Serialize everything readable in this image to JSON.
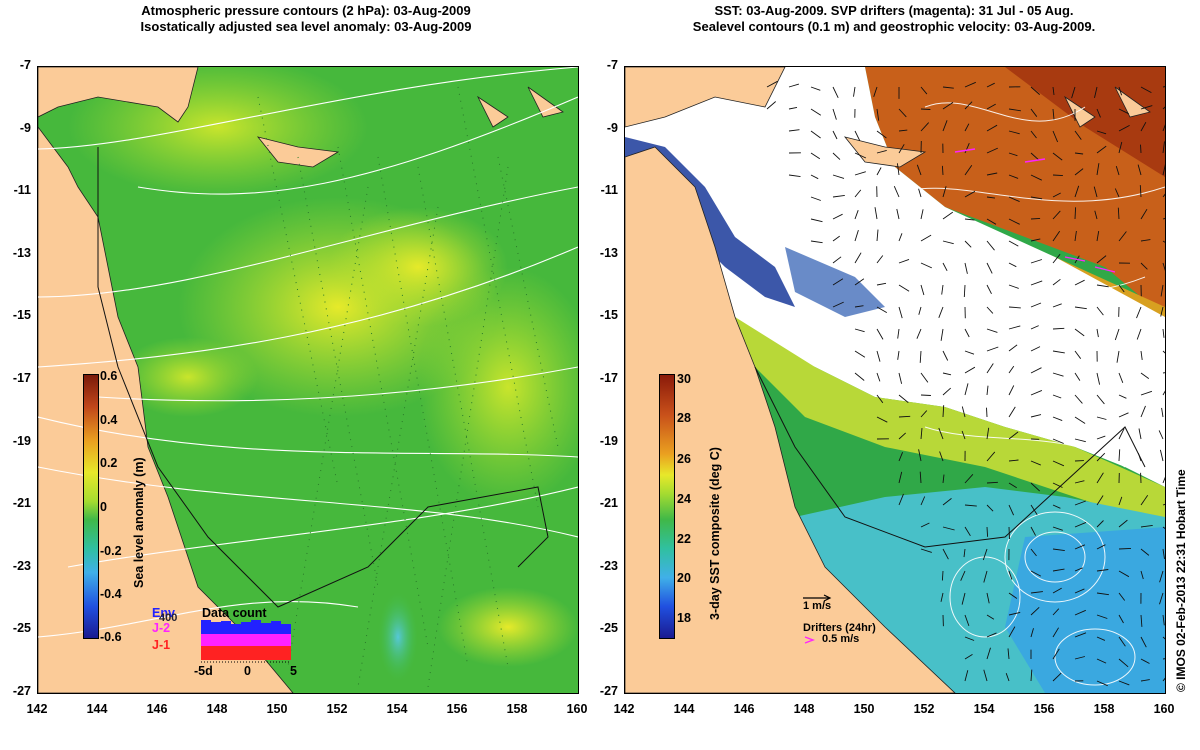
{
  "left_panel": {
    "title_line1": "Atmospheric pressure contours (2 hPa): 03-Aug-2009",
    "title_line2": "Isostatically adjusted sea level anomaly: 03-Aug-2009",
    "x_ticks": [
      "142",
      "144",
      "146",
      "148",
      "150",
      "152",
      "154",
      "156",
      "158",
      "160"
    ],
    "y_ticks": [
      "-7",
      "-9",
      "-11",
      "-13",
      "-15",
      "-17",
      "-19",
      "-21",
      "-23",
      "-25",
      "-27"
    ],
    "colorbar": {
      "label": "Sea level anomaly (m)",
      "ticks": [
        "0.6",
        "0.4",
        "0.2",
        "0",
        "-0.2",
        "-0.4",
        "-0.6"
      ],
      "range": [
        -0.6,
        0.6
      ]
    },
    "data_count": {
      "title": "Data count",
      "sats": [
        "Env",
        "J-2",
        "J-1"
      ],
      "sat_colors": [
        "#2222ff",
        "#ff22ff",
        "#ff2222"
      ],
      "extra_label": "400",
      "x_ticks": [
        "-5d",
        "0",
        "5"
      ]
    }
  },
  "right_panel": {
    "title_line1": "SST: 03-Aug-2009. SVP drifters (magenta): 31 Jul - 05 Aug.",
    "title_line2": "Sealevel contours (0.1 m) and geostrophic velocity: 03-Aug-2009.",
    "x_ticks": [
      "142",
      "144",
      "146",
      "148",
      "150",
      "152",
      "154",
      "156",
      "158",
      "160"
    ],
    "y_ticks": [
      "-7",
      "-9",
      "-11",
      "-13",
      "-15",
      "-17",
      "-19",
      "-21",
      "-23",
      "-25",
      "-27"
    ],
    "colorbar": {
      "label": "3-day SST composite (deg C)",
      "ticks": [
        "30",
        "28",
        "26",
        "24",
        "22",
        "20",
        "18"
      ],
      "range": [
        17,
        30
      ]
    },
    "velocity_scale_label": "1 m/s",
    "drifter_label": "Drifters (24hr)",
    "drifter_scale_label": "0.5 m/s"
  },
  "credit": "© IMOS 02-Feb-2013 22:31 Hobart Time",
  "colors": {
    "land": "#fbcb98",
    "sea_green": "#33b833",
    "sea_yellow": "#d8e830",
    "sst_white": "#ffffff",
    "sst_warm": "#c85a10",
    "drifter": "#ff22ff"
  }
}
